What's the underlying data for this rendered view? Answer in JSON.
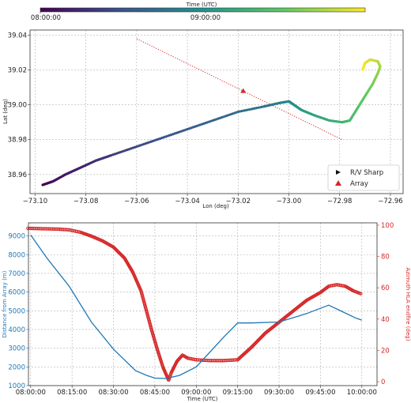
{
  "colorbar": {
    "label": "Time (UTC)",
    "ticks": [
      "08:00:00",
      "09:00:00"
    ],
    "colormap": "viridis",
    "colors": [
      "#440154",
      "#3b528b",
      "#21918c",
      "#5ec962",
      "#fde725"
    ]
  },
  "chart_data": [
    {
      "type": "scatter",
      "xlabel": "Lon (deg)",
      "ylabel": "Lat (deg)",
      "xlim": [
        -73.102,
        -72.955
      ],
      "ylim": [
        38.949,
        39.043
      ],
      "xticks": [
        "−73.10",
        "−73.08",
        "−73.06",
        "−73.04",
        "−73.02",
        "−73.00",
        "−72.98",
        "−72.96"
      ],
      "yticks": [
        "38.96",
        "38.98",
        "39.00",
        "39.02",
        "39.04"
      ],
      "legend": {
        "placement": "bottom-right",
        "entries": [
          "R/V Sharp",
          "Array"
        ]
      },
      "series": [
        {
          "name": "R/V Sharp",
          "color_by": "time",
          "track": [
            [
              -73.097,
              38.954
            ],
            [
              -73.093,
              38.956
            ],
            [
              -73.088,
              38.96
            ],
            [
              -73.082,
              38.964
            ],
            [
              -73.076,
              38.968
            ],
            [
              -73.07,
              38.971
            ],
            [
              -73.06,
              38.976
            ],
            [
              -73.05,
              38.981
            ],
            [
              -73.04,
              38.986
            ],
            [
              -73.03,
              38.991
            ],
            [
              -73.02,
              38.996
            ],
            [
              -73.01,
              38.999
            ],
            [
              -73.004,
              39.001
            ],
            [
              -73.0,
              39.002
            ],
            [
              -72.998,
              39.0
            ],
            [
              -72.995,
              38.997
            ],
            [
              -72.99,
              38.994
            ],
            [
              -72.984,
              38.991
            ],
            [
              -72.979,
              38.99
            ],
            [
              -72.976,
              38.991
            ],
            [
              -72.973,
              38.998
            ],
            [
              -72.97,
              39.005
            ],
            [
              -72.967,
              39.012
            ],
            [
              -72.965,
              39.018
            ],
            [
              -72.964,
              39.022
            ],
            [
              -72.965,
              39.025
            ],
            [
              -72.968,
              39.026
            ],
            [
              -72.97,
              39.024
            ],
            [
              -72.971,
              39.02
            ]
          ]
        },
        {
          "name": "Array",
          "marker": "triangle",
          "color": "#d62728",
          "points": [
            [
              -73.018,
              39.008
            ]
          ]
        },
        {
          "name": "endfire line",
          "style": "dotted",
          "color": "#d62728",
          "points": [
            [
              -73.06,
              39.038
            ],
            [
              -72.979,
              38.98
            ]
          ]
        }
      ]
    },
    {
      "type": "line",
      "xlabel": "Time (UTC)",
      "ylabel": "Distance from Array (m)",
      "y2label": "Azimuth HLA endfire (deg)",
      "xlim": [
        -0.8,
        125.5
      ],
      "ylim": [
        1000,
        9700
      ],
      "y2lim": [
        -2.5,
        101.5
      ],
      "xticks": [
        "08:00:00",
        "08:15:00",
        "08:30:00",
        "08:45:00",
        "09:00:00",
        "09:15:00",
        "09:30:00",
        "09:45:00",
        "10:00:00"
      ],
      "yticks": [
        "1000",
        "2000",
        "3000",
        "4000",
        "5000",
        "6000",
        "7000",
        "8000",
        "9000"
      ],
      "y2ticks": [
        "0",
        "20",
        "40",
        "60",
        "80",
        "100"
      ],
      "colors": {
        "distance": "#1f77b4",
        "azimuth": "#d62728"
      },
      "series": [
        {
          "name": "Distance from Array",
          "axis": "left",
          "time": [
            "08:00:00",
            "08:06:00",
            "08:14:00",
            "08:22:00",
            "08:30:00",
            "08:38:00",
            "08:42:00",
            "08:45:00",
            "08:49:00",
            "08:54:00",
            "09:00:00",
            "09:10:00",
            "09:15:00",
            "09:20:00",
            "09:30:00",
            "09:40:00",
            "09:48:00",
            "09:53:00",
            "09:58:00",
            "10:00:00"
          ],
          "values": [
            9050,
            7800,
            6300,
            4400,
            2950,
            1800,
            1550,
            1400,
            1380,
            1550,
            2000,
            3600,
            4350,
            4350,
            4400,
            4850,
            5300,
            4950,
            4600,
            4500
          ]
        },
        {
          "name": "Azimuth HLA endfire",
          "axis": "right",
          "style": "markers",
          "time": [
            "07:59:00",
            "08:05:00",
            "08:10:00",
            "08:14:00",
            "08:18:00",
            "08:22:00",
            "08:26:00",
            "08:30:00",
            "08:34:00",
            "08:37:00",
            "08:40:00",
            "08:42:00",
            "08:44:00",
            "08:46:00",
            "08:48:00",
            "08:50:00",
            "08:51:00",
            "08:53:00",
            "08:55:00",
            "08:57:00",
            "09:00:00",
            "09:05:00",
            "09:10:00",
            "09:15:00",
            "09:20:00",
            "09:25:00",
            "09:30:00",
            "09:35:00",
            "09:40:00",
            "09:45:00",
            "09:48:00",
            "09:51:00",
            "09:54:00",
            "09:57:00",
            "10:00:00"
          ],
          "values": [
            98,
            97.7,
            97.5,
            97,
            95.5,
            93,
            90,
            86,
            79,
            70,
            58,
            45,
            32,
            20,
            9,
            1,
            6,
            13,
            17,
            15,
            14,
            13.5,
            13.5,
            14,
            22,
            31,
            38,
            45,
            52,
            57,
            61,
            62,
            61,
            58,
            56
          ]
        }
      ]
    }
  ]
}
